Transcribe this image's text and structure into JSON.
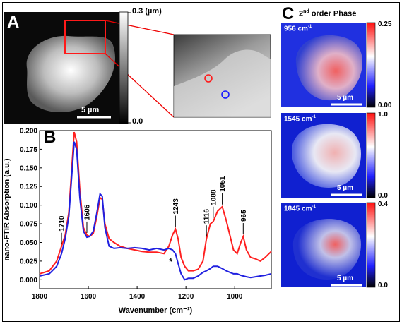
{
  "panel_a": {
    "letter": "A",
    "colorbar_max": "0.3 (µm)",
    "colorbar_min": "0.0",
    "scalebar_label": "5 µm"
  },
  "panel_b": {
    "letter": "B"
  },
  "panel_c": {
    "letter": "C",
    "title_pre": "2",
    "title_sup": "nd",
    "title_post": " order Phase",
    "maps": [
      {
        "wavenumber": "956 cm",
        "sup": "-1",
        "cb_max": "0.25",
        "cb_min": "0.00",
        "scalebar": "5 µm"
      },
      {
        "wavenumber": "1545 cm",
        "sup": "-1",
        "cb_max": "1.0",
        "cb_min": "0.0",
        "scalebar": "5 µm"
      },
      {
        "wavenumber": "1845 cm",
        "sup": "-1",
        "cb_max": "0.4",
        "cb_min": "0.0",
        "scalebar": "5 µm"
      }
    ]
  },
  "chart_data": {
    "type": "line",
    "xlabel": "Wavenumber (cm⁻¹)",
    "ylabel": "nano-FTIR Absorption (a.u.)",
    "xlim": [
      1800,
      850
    ],
    "ylim": [
      -0.012,
      0.2
    ],
    "xticks": [
      1800,
      1600,
      1400,
      1200,
      1000
    ],
    "yticks": [
      0.0,
      0.025,
      0.05,
      0.075,
      0.1,
      0.125,
      0.15,
      0.175,
      0.2
    ],
    "ytick_labels": [
      "0.000",
      "0.025",
      "0.050",
      "0.075",
      "0.100",
      "0.125",
      "0.150",
      "0.175",
      "0.200"
    ],
    "series": [
      {
        "color": "#ff2020",
        "points": [
          [
            1800,
            0.008
          ],
          [
            1760,
            0.012
          ],
          [
            1730,
            0.025
          ],
          [
            1710,
            0.045
          ],
          [
            1695,
            0.06
          ],
          [
            1680,
            0.09
          ],
          [
            1668,
            0.15
          ],
          [
            1658,
            0.198
          ],
          [
            1648,
            0.185
          ],
          [
            1635,
            0.12
          ],
          [
            1620,
            0.07
          ],
          [
            1606,
            0.06
          ],
          [
            1595,
            0.058
          ],
          [
            1580,
            0.062
          ],
          [
            1565,
            0.085
          ],
          [
            1552,
            0.11
          ],
          [
            1543,
            0.108
          ],
          [
            1532,
            0.075
          ],
          [
            1515,
            0.055
          ],
          [
            1495,
            0.05
          ],
          [
            1470,
            0.045
          ],
          [
            1440,
            0.042
          ],
          [
            1410,
            0.04
          ],
          [
            1380,
            0.038
          ],
          [
            1350,
            0.037
          ],
          [
            1320,
            0.037
          ],
          [
            1290,
            0.035
          ],
          [
            1270,
            0.045
          ],
          [
            1255,
            0.06
          ],
          [
            1243,
            0.068
          ],
          [
            1232,
            0.055
          ],
          [
            1220,
            0.03
          ],
          [
            1205,
            0.018
          ],
          [
            1190,
            0.012
          ],
          [
            1170,
            0.012
          ],
          [
            1150,
            0.014
          ],
          [
            1130,
            0.025
          ],
          [
            1116,
            0.055
          ],
          [
            1100,
            0.075
          ],
          [
            1088,
            0.078
          ],
          [
            1070,
            0.092
          ],
          [
            1051,
            0.098
          ],
          [
            1035,
            0.08
          ],
          [
            1020,
            0.06
          ],
          [
            1005,
            0.04
          ],
          [
            990,
            0.035
          ],
          [
            975,
            0.05
          ],
          [
            965,
            0.058
          ],
          [
            952,
            0.04
          ],
          [
            935,
            0.03
          ],
          [
            915,
            0.028
          ],
          [
            895,
            0.025
          ],
          [
            875,
            0.03
          ],
          [
            850,
            0.038
          ]
        ]
      },
      {
        "color": "#2020e0",
        "points": [
          [
            1800,
            0.005
          ],
          [
            1760,
            0.008
          ],
          [
            1730,
            0.018
          ],
          [
            1710,
            0.035
          ],
          [
            1695,
            0.055
          ],
          [
            1680,
            0.085
          ],
          [
            1668,
            0.14
          ],
          [
            1658,
            0.185
          ],
          [
            1648,
            0.175
          ],
          [
            1635,
            0.11
          ],
          [
            1620,
            0.065
          ],
          [
            1606,
            0.057
          ],
          [
            1595,
            0.058
          ],
          [
            1580,
            0.065
          ],
          [
            1565,
            0.09
          ],
          [
            1552,
            0.115
          ],
          [
            1543,
            0.112
          ],
          [
            1532,
            0.07
          ],
          [
            1515,
            0.045
          ],
          [
            1495,
            0.042
          ],
          [
            1470,
            0.043
          ],
          [
            1440,
            0.042
          ],
          [
            1410,
            0.043
          ],
          [
            1380,
            0.042
          ],
          [
            1350,
            0.04
          ],
          [
            1320,
            0.042
          ],
          [
            1290,
            0.04
          ],
          [
            1270,
            0.042
          ],
          [
            1255,
            0.04
          ],
          [
            1243,
            0.035
          ],
          [
            1232,
            0.022
          ],
          [
            1220,
            0.008
          ],
          [
            1205,
            0.0
          ],
          [
            1190,
            0.002
          ],
          [
            1170,
            0.002
          ],
          [
            1150,
            0.005
          ],
          [
            1130,
            0.01
          ],
          [
            1116,
            0.012
          ],
          [
            1100,
            0.015
          ],
          [
            1088,
            0.018
          ],
          [
            1070,
            0.018
          ],
          [
            1051,
            0.015
          ],
          [
            1035,
            0.012
          ],
          [
            1020,
            0.01
          ],
          [
            1005,
            0.008
          ],
          [
            990,
            0.008
          ],
          [
            975,
            0.006
          ],
          [
            965,
            0.005
          ],
          [
            952,
            0.004
          ],
          [
            935,
            0.003
          ],
          [
            915,
            0.004
          ],
          [
            895,
            0.005
          ],
          [
            875,
            0.006
          ],
          [
            850,
            0.008
          ]
        ]
      }
    ],
    "annotations": [
      {
        "text": "1710",
        "x": 1710,
        "y": 0.045
      },
      {
        "text": "1606",
        "x": 1606,
        "y": 0.06
      },
      {
        "text": "1243",
        "x": 1243,
        "y": 0.068
      },
      {
        "text": "1116",
        "x": 1116,
        "y": 0.055
      },
      {
        "text": "1088",
        "x": 1088,
        "y": 0.08
      },
      {
        "text": "1051",
        "x": 1051,
        "y": 0.098
      },
      {
        "text": "965",
        "x": 965,
        "y": 0.058
      },
      {
        "text": "*",
        "x": 1262,
        "y": 0.02
      }
    ]
  }
}
